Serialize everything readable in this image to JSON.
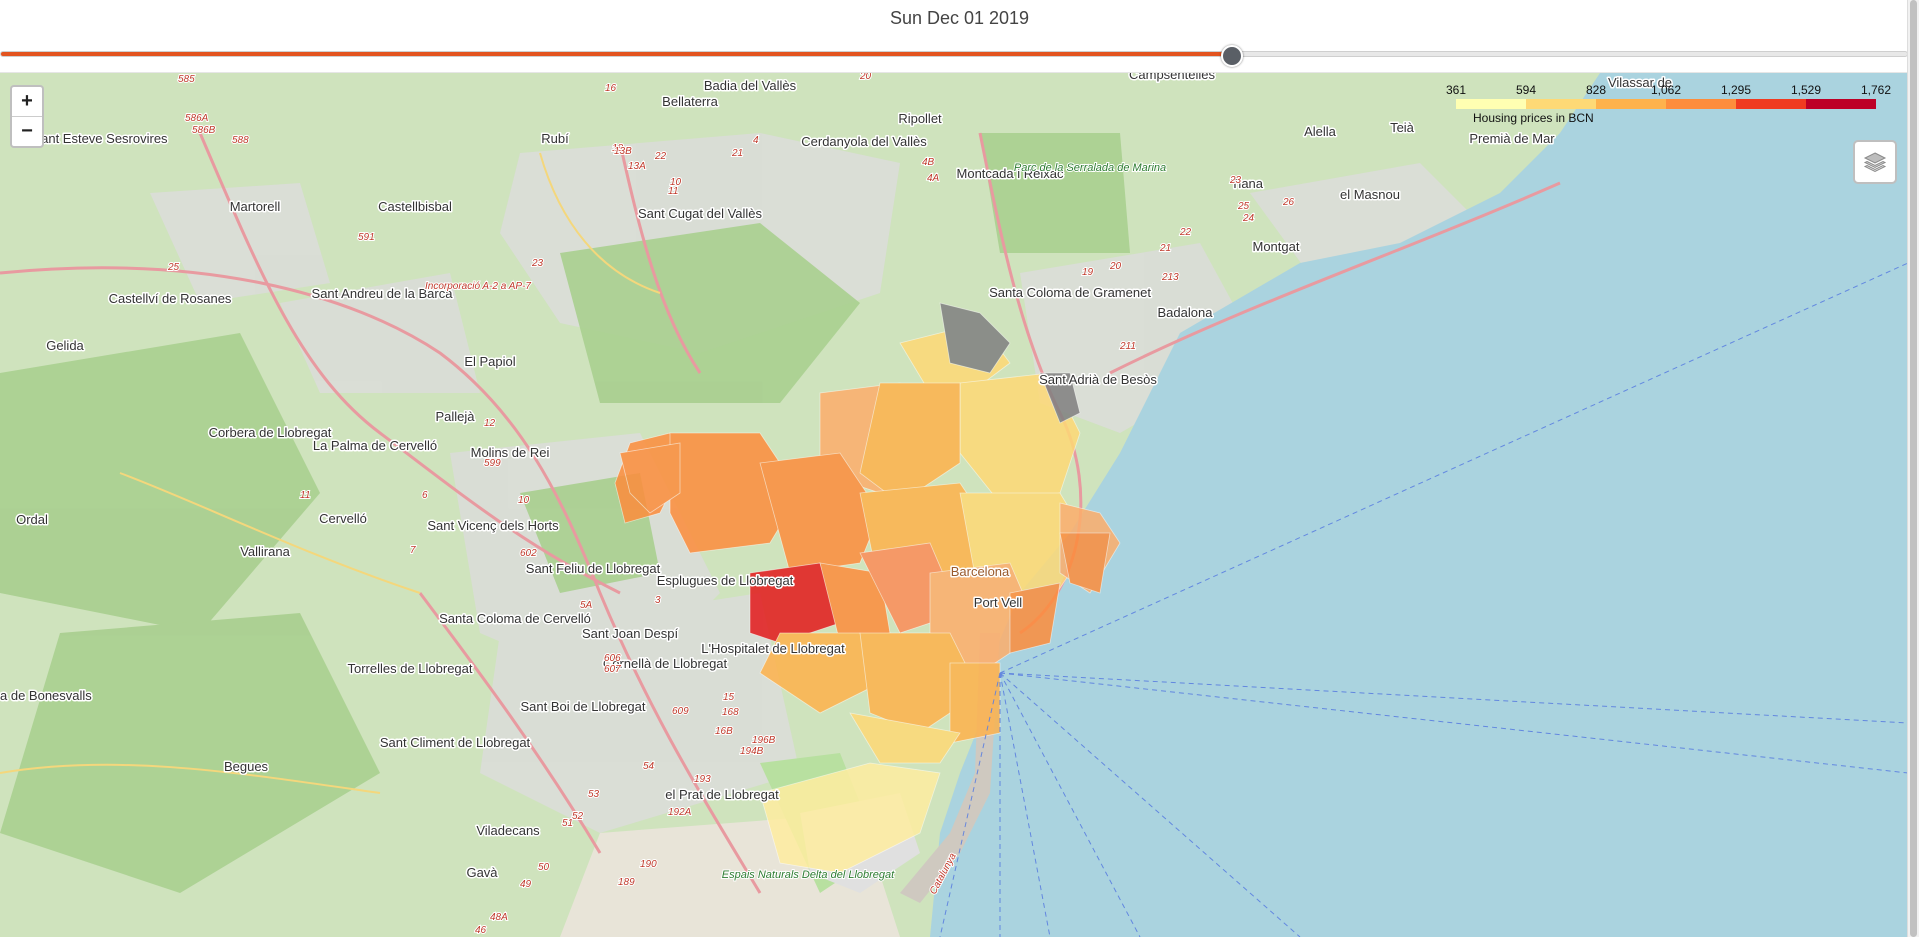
{
  "header": {
    "date": "Sun Dec 01 2019",
    "slider_position": 0.645
  },
  "zoom": {
    "in_label": "+",
    "out_label": "−"
  },
  "legend": {
    "title": "Housing prices in BCN",
    "ticks": [
      "361",
      "594",
      "828",
      "1,062",
      "1,295",
      "1,529",
      "1,762"
    ],
    "colors": [
      "#ffffb2",
      "#fed976",
      "#feb24c",
      "#fd8d3c",
      "#f03b20",
      "#bd0026"
    ]
  },
  "colors": {
    "map_land": "#c7dfb6",
    "sea": "#aad3df",
    "slider_fill": "#e3541f",
    "no_data": "#808080",
    "tram_lines": "#5b7fe0"
  },
  "place_labels": [
    "Badia del Vallès",
    "Bellaterra",
    "Ripollet",
    "Rubí",
    "Cerdanyola del Vallès",
    "Montcada i Reixac",
    "Sant Esteve Sesrovires",
    "Martorell",
    "Castellbisbal",
    "Sant Cugat del Vallès",
    "Sant Andreu de la Barca",
    "Castellví de Rosanes",
    "Gelida",
    "El Papiol",
    "Corbera de Llobregat",
    "La Palma de Cervelló",
    "Molins de Rei",
    "Pallejà",
    "Ordal",
    "Vallirana",
    "Cervelló",
    "Sant Vicenç dels Horts",
    "Sant Feliu de Llobregat",
    "Esplugues de Llobregat",
    "Santa Coloma de Cervelló",
    "Sant Joan Despí",
    "L'Hospitalet de Llobregat",
    "Torrelles de Llobregat",
    "Cornellà de Llobregat",
    "Sant Boi de Llobregat",
    "Sant Climent de Llobregat",
    "Begues",
    "el Prat de Llobregat",
    "Viladecans",
    "Gavà",
    "Santa Coloma de Gramenet",
    "Badalona",
    "Sant Adrià de Besòs",
    "Montgat",
    "Tiana",
    "el Masnou",
    "Teià",
    "Alella",
    "Premià de Mar",
    "Vilassar de",
    "Campsentelles",
    "Barcelona",
    "Port Vell",
    "Catalunya",
    "Sant Climent",
    "Parc de la Serralada de Marina",
    "Espais Naturals Delta del Llobregat",
    "a de Bonesvalls"
  ],
  "road_labels": [
    "585",
    "586A",
    "586B",
    "588",
    "16",
    "20",
    "18",
    "13B",
    "13A",
    "22",
    "21",
    "4",
    "4B",
    "4A",
    "19",
    "20",
    "23",
    "26",
    "24",
    "25",
    "22",
    "21",
    "213",
    "211",
    "23",
    "591",
    "599",
    "12",
    "10",
    "11",
    "6",
    "7",
    "602",
    "3",
    "5A",
    "606",
    "607",
    "609",
    "15",
    "16B",
    "168",
    "196B",
    "194B",
    "193",
    "192A",
    "190",
    "189",
    "48A",
    "46",
    "54",
    "53",
    "52",
    "51",
    "50",
    "49",
    "10",
    "11",
    "25"
  ],
  "road_label_text": {
    "incorporacio": "Incorporació A-2 a AP-7"
  }
}
